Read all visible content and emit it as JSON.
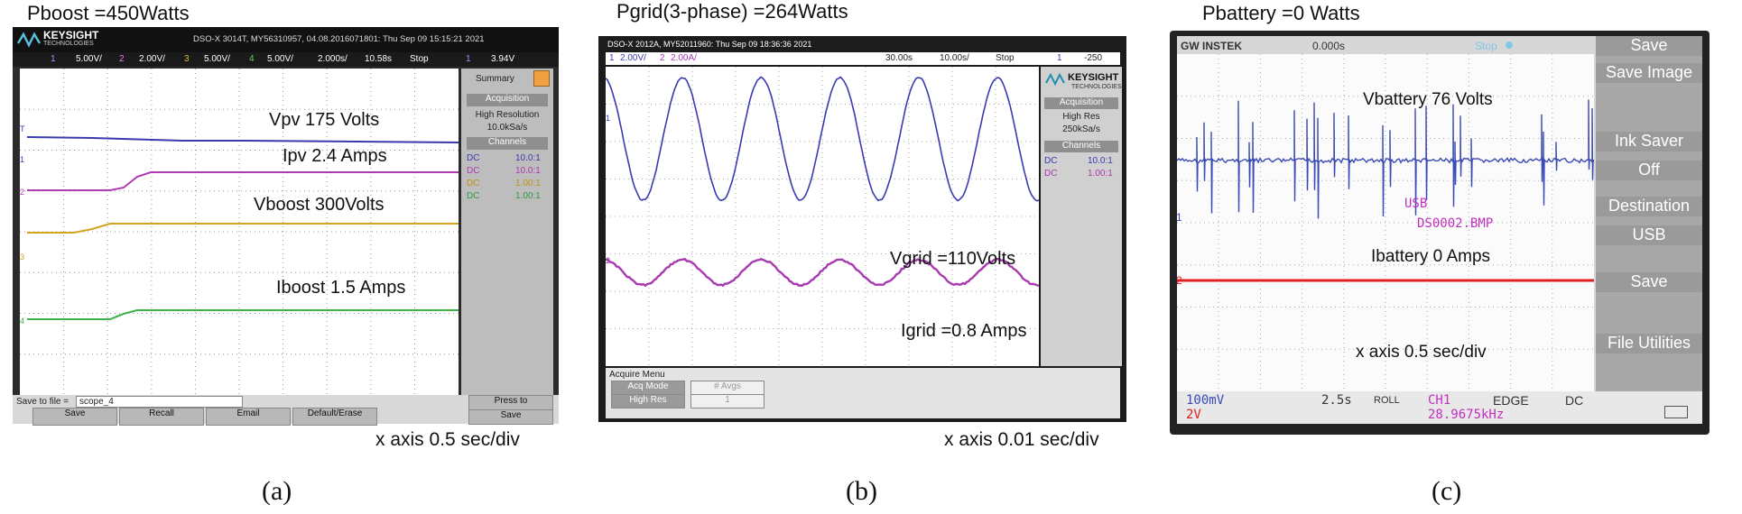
{
  "panel_a": {
    "title": "Pboost =450Watts",
    "xaxis": "x axis 0.5 sec/div",
    "caption": "(a)",
    "brand": "KEYSIGHT",
    "brand_sub": "TECHNOLOGIES",
    "status_line": "DSO-X 3014T, MY56310957, 04.08.2016071801: Thu Sep 09 15:15:21 2021",
    "ch_settings": [
      "1",
      "5.00V/",
      "2",
      "2.00V/",
      "3",
      "5.00V/",
      "4",
      "5.00V/",
      "2.000s/",
      "10.58s",
      "Stop",
      "1",
      "3.94V"
    ],
    "side": {
      "summary": "Summary",
      "acq": "Acquisition",
      "mode": "High Resolution",
      "rate": "10.0kSa/s",
      "channels": "Channels",
      "rows": [
        [
          "DC",
          "10.0:1"
        ],
        [
          "DC",
          "10.0:1"
        ],
        [
          "DC",
          "1.00:1"
        ],
        [
          "DC",
          "1.00:1"
        ]
      ]
    },
    "save_to_file": "Save to file =",
    "file_name": "scope_4",
    "buttons": [
      "Save",
      "Recall",
      "Email",
      "Default/Erase"
    ],
    "press_to_save": [
      "Press to",
      "Save"
    ],
    "labels": [
      "Vpv 175 Volts",
      "Ipv 2.4 Amps",
      "Vboost 300Volts",
      "Iboost 1.5 Amps"
    ],
    "colors": {
      "ch1": "#3a3ab0",
      "ch2": "#b03ab0",
      "ch3": "#d4a420",
      "ch4": "#3bb34a"
    }
  },
  "panel_b": {
    "title": "Pgrid(3-phase) =264Watts",
    "xaxis": "x axis 0.01 sec/div",
    "caption": "(b)",
    "status_line": "DSO-X 2012A, MY52011960: Thu Sep 09 18:36:36 2021",
    "ch_settings": [
      "1",
      "2.00V/",
      "2",
      "2.00A/",
      "30.00s",
      "10.00s/",
      "Stop",
      "1",
      "-250"
    ],
    "brand": "KEYSIGHT",
    "brand_sub": "TECHNOLOGIES",
    "side": {
      "acq": "Acquisition",
      "mode": "High Res",
      "rate": "250kSa/s",
      "channels": "Channels",
      "rows": [
        [
          "DC",
          "10.0:1"
        ],
        [
          "DC",
          "1.00:1"
        ]
      ]
    },
    "acquire_menu": "Acquire Menu",
    "acq_mode": [
      "Acq Mode",
      "High Res"
    ],
    "avgs": [
      "# Avgs",
      "1"
    ],
    "labels": [
      "Vgrid =110Volts",
      "Igrid =0.8 Amps"
    ],
    "colors": {
      "ch1": "#3a3ab0",
      "ch2": "#a83ab0"
    }
  },
  "panel_c": {
    "title": "Pbattery =0 Watts",
    "caption": "(c)",
    "brand": "GW INSTEK",
    "time_readout": "0.000s",
    "stop": "Stop",
    "menu": [
      "Save",
      "Save Image",
      "Ink Saver",
      "Off",
      "Destination",
      "USB",
      "Save",
      "File Utilities"
    ],
    "usb": "USB",
    "file": "DS0002.BMP",
    "labels": [
      "Vbattery 76 Volts",
      "Ibattery 0 Amps"
    ],
    "xaxis": "x axis 0.5 sec/div",
    "bottom": {
      "ch1": "100mV",
      "ch2": "2V",
      "time": "2.5s",
      "roll": "ROLL",
      "trig_ch": "CH1",
      "edge": "EDGE",
      "coupling": "DC",
      "freq": "28.9675kHz"
    },
    "colors": {
      "ch1": "#3a4ab4",
      "ch2": "#e02020"
    }
  },
  "chart_data": [
    {
      "type": "line",
      "title": "Pboost =450Watts",
      "xlabel": "x axis 0.5 sec/div",
      "series": [
        {
          "name": "Vpv 175 Volts",
          "values": [
            175,
            175,
            175,
            175
          ]
        },
        {
          "name": "Ipv 2.4 Amps",
          "values": [
            0,
            0,
            2.4,
            2.4
          ]
        },
        {
          "name": "Vboost 300Volts",
          "values": [
            280,
            280,
            300,
            300
          ]
        },
        {
          "name": "Iboost 1.5 Amps",
          "values": [
            0,
            0,
            1.5,
            1.5
          ]
        }
      ]
    },
    {
      "type": "line",
      "title": "Pgrid(3-phase) =264Watts",
      "xlabel": "x axis 0.01 sec/div",
      "series": [
        {
          "name": "Vgrid =110Volts",
          "amplitude": 110,
          "cycles": 5.5
        },
        {
          "name": "Igrid =0.8 Amps",
          "amplitude": 0.8,
          "cycles": 5.5
        }
      ]
    },
    {
      "type": "line",
      "title": "Pbattery =0 Watts",
      "xlabel": "x axis 0.5 sec/div",
      "series": [
        {
          "name": "Vbattery 76 Volts",
          "values": [
            76,
            76
          ]
        },
        {
          "name": "Ibattery 0 Amps",
          "values": [
            0,
            0
          ]
        }
      ]
    }
  ]
}
